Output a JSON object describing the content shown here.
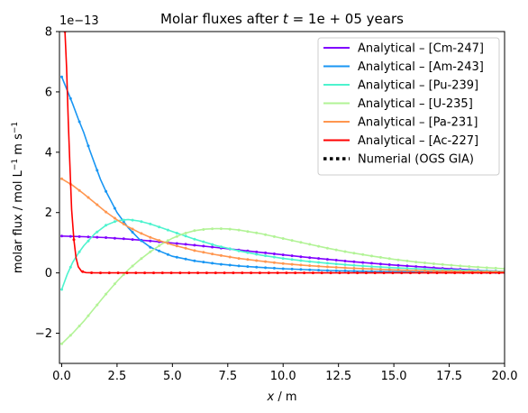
{
  "chart_data": {
    "type": "line",
    "title": "Molar fluxes after t = 1e + 05 years",
    "title_parts": {
      "prefix": "Molar fluxes after ",
      "var": "t",
      "rest": " = 1e + 05",
      "suffix": " years"
    },
    "xlabel": "x / m",
    "xlabel_parts": {
      "var": "x",
      "rest": " / m"
    },
    "ylabel": "molar flux / mol L−1 m s−1",
    "ylabel_parts": {
      "a": "molar flux / mol L",
      "sup1": "−1",
      "b": " m s",
      "sup2": "−1"
    },
    "y_offset_label": "1e−13",
    "xlim": [
      -0.1,
      20.0
    ],
    "ylim": [
      -3,
      8
    ],
    "xticks": [
      0.0,
      2.5,
      5.0,
      7.5,
      10.0,
      12.5,
      15.0,
      17.5,
      20.0
    ],
    "xtick_labels": [
      "0.0",
      "2.5",
      "5.0",
      "7.5",
      "10.0",
      "12.5",
      "15.0",
      "17.5",
      "20.0"
    ],
    "yticks": [
      -2,
      0,
      2,
      4,
      6,
      8
    ],
    "ytick_labels": [
      "−2",
      "0",
      "2",
      "4",
      "6",
      "8"
    ],
    "grid": false,
    "legend_position": "top-right",
    "series": [
      {
        "name": "Analytical – [Cm-247]",
        "color": "#8000ff",
        "x": [
          0,
          1,
          2,
          3,
          4,
          5,
          6,
          7,
          8,
          9,
          10,
          11,
          12,
          13,
          14,
          15,
          16,
          17,
          18,
          19,
          20
        ],
        "y": [
          1.22,
          1.2,
          1.17,
          1.12,
          1.06,
          0.99,
          0.92,
          0.84,
          0.76,
          0.68,
          0.6,
          0.52,
          0.45,
          0.38,
          0.32,
          0.26,
          0.21,
          0.16,
          0.12,
          0.08,
          0.05
        ]
      },
      {
        "name": "Analytical – [Am-243]",
        "color": "#1996f3",
        "x": [
          0,
          0.25,
          0.5,
          0.75,
          1,
          1.25,
          1.5,
          1.75,
          2,
          2.5,
          3,
          3.5,
          4,
          5,
          6,
          7,
          8,
          9,
          10,
          11,
          12,
          14,
          16,
          18,
          20
        ],
        "y": [
          6.5,
          6.05,
          5.6,
          5.1,
          4.65,
          4.1,
          3.6,
          3.1,
          2.7,
          2.0,
          1.5,
          1.12,
          0.85,
          0.55,
          0.4,
          0.3,
          0.23,
          0.18,
          0.14,
          0.11,
          0.08,
          0.05,
          0.03,
          0.015,
          0.01
        ]
      },
      {
        "name": "Analytical – [Pu-239]",
        "color": "#4df3ce",
        "x": [
          0,
          0.25,
          0.5,
          0.75,
          1,
          1.5,
          2,
          2.5,
          3,
          3.5,
          4,
          4.5,
          5,
          6,
          7,
          8,
          9,
          10,
          11,
          12,
          13,
          14,
          15,
          16,
          17,
          18,
          19,
          20
        ],
        "y": [
          -0.55,
          -0.05,
          0.35,
          0.65,
          0.9,
          1.3,
          1.58,
          1.73,
          1.77,
          1.72,
          1.62,
          1.5,
          1.37,
          1.12,
          0.9,
          0.73,
          0.59,
          0.48,
          0.39,
          0.32,
          0.26,
          0.21,
          0.17,
          0.14,
          0.11,
          0.09,
          0.07,
          0.05
        ]
      },
      {
        "name": "Analytical – [U-235]",
        "color": "#b2f396",
        "x": [
          0,
          0.5,
          1,
          1.5,
          2,
          2.5,
          3,
          3.5,
          4,
          4.5,
          5,
          5.5,
          6,
          6.5,
          7,
          7.5,
          8,
          9,
          10,
          11,
          12,
          13,
          14,
          15,
          16,
          17,
          18,
          19,
          20
        ],
        "y": [
          -2.35,
          -2.0,
          -1.6,
          -1.15,
          -0.7,
          -0.28,
          0.1,
          0.42,
          0.7,
          0.95,
          1.15,
          1.3,
          1.4,
          1.45,
          1.47,
          1.46,
          1.42,
          1.3,
          1.14,
          0.98,
          0.82,
          0.68,
          0.56,
          0.45,
          0.36,
          0.29,
          0.23,
          0.18,
          0.14
        ]
      },
      {
        "name": "Analytical – [Pa-231]",
        "color": "#ff964f",
        "x": [
          0,
          0.5,
          1,
          1.5,
          2,
          2.5,
          3,
          3.5,
          4,
          4.5,
          5,
          6,
          7,
          8,
          9,
          10,
          11,
          12,
          13,
          14,
          15,
          16,
          17,
          18,
          19,
          20
        ],
        "y": [
          3.12,
          2.9,
          2.62,
          2.32,
          2.02,
          1.76,
          1.53,
          1.34,
          1.18,
          1.05,
          0.93,
          0.74,
          0.6,
          0.48,
          0.39,
          0.31,
          0.25,
          0.2,
          0.16,
          0.13,
          0.1,
          0.08,
          0.06,
          0.05,
          0.04,
          0.03
        ]
      },
      {
        "name": "Analytical – [Ac-227]",
        "color": "#ff0000",
        "x": [
          0.15,
          0.22,
          0.3,
          0.38,
          0.45,
          0.55,
          0.65,
          0.75,
          0.9,
          1.1,
          1.5,
          2,
          3,
          4,
          5,
          6,
          7,
          8,
          9,
          10,
          11,
          12,
          13,
          14,
          15,
          16,
          17,
          18,
          19,
          20
        ],
        "y": [
          8.0,
          6.8,
          5.0,
          3.4,
          2.1,
          1.1,
          0.5,
          0.2,
          0.05,
          0.01,
          0,
          0,
          0,
          0,
          0,
          0,
          0,
          0,
          0,
          0,
          0,
          0,
          0,
          0,
          0,
          0,
          0,
          0,
          0,
          0
        ]
      }
    ],
    "numerical_label": "Numerial (OGS GIA)"
  }
}
